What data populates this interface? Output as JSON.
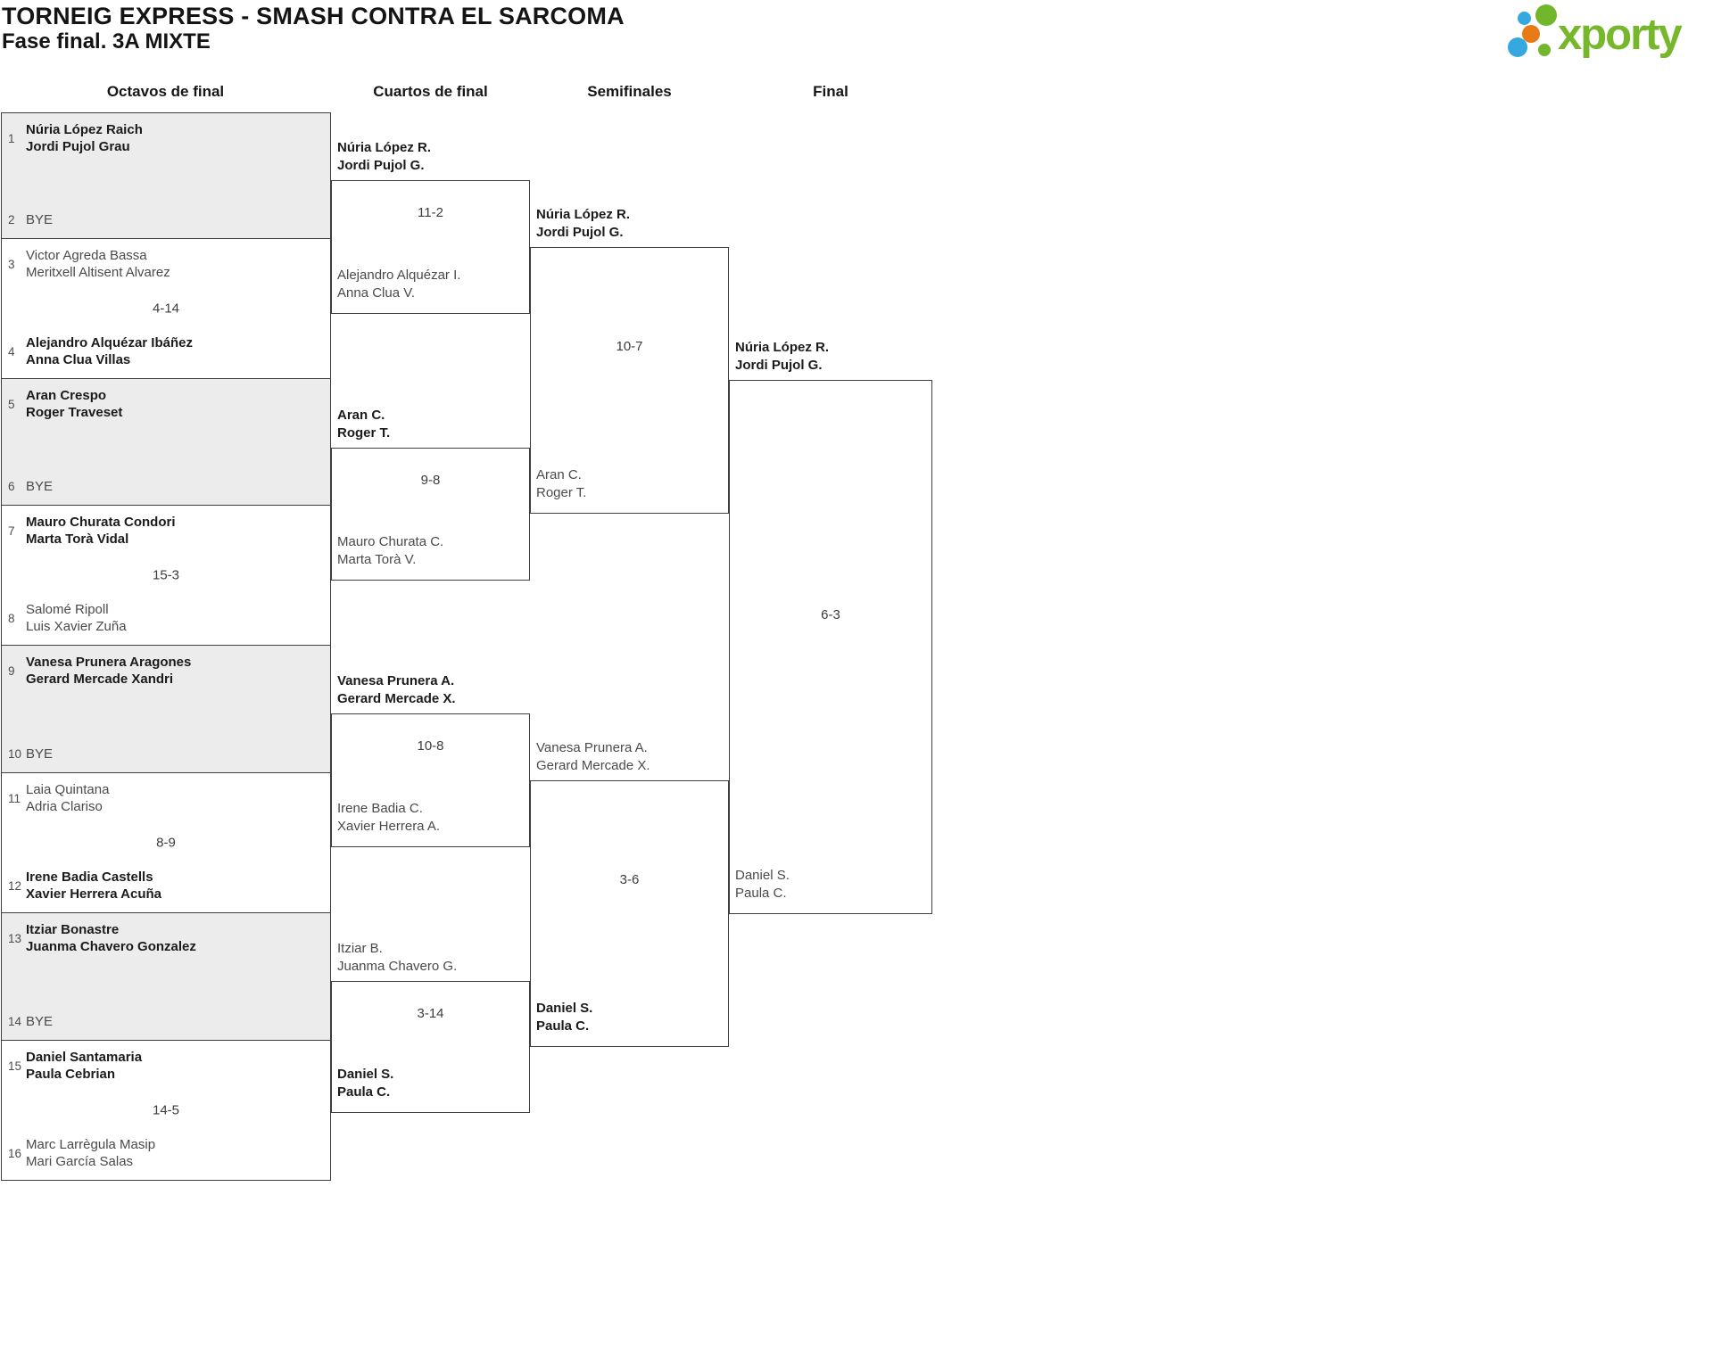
{
  "header": {
    "title": "TORNEIG EXPRESS - SMASH CONTRA EL SARCOMA",
    "subtitle": "Fase final. 3A MIXTE"
  },
  "logo": {
    "brand": "xporty"
  },
  "colors": {
    "brand_green": "#76b72b",
    "brand_blue": "#35a8e0",
    "brand_orange": "#e87b16",
    "shaded_box": "#ececec",
    "border": "#3e3e3e"
  },
  "rounds": [
    "Octavos de final",
    "Cuartos de final",
    "Semifinales",
    "Final"
  ],
  "r16": [
    {
      "score": "",
      "shaded": true,
      "top": {
        "seed": "1",
        "p1": "Núria López Raich",
        "p2": "Jordi Pujol Grau",
        "bold": true
      },
      "bottom": {
        "seed": "2",
        "p1": "BYE",
        "p2": "",
        "bold": false
      }
    },
    {
      "score": "4-14",
      "shaded": false,
      "top": {
        "seed": "3",
        "p1": "Victor Agreda Bassa",
        "p2": "Meritxell Altisent Alvarez",
        "bold": false
      },
      "bottom": {
        "seed": "4",
        "p1": "Alejandro Alquézar Ibáñez",
        "p2": "Anna Clua Villas",
        "bold": true
      }
    },
    {
      "score": "",
      "shaded": true,
      "top": {
        "seed": "5",
        "p1": "Aran Crespo",
        "p2": "Roger Traveset",
        "bold": true
      },
      "bottom": {
        "seed": "6",
        "p1": "BYE",
        "p2": "",
        "bold": false
      }
    },
    {
      "score": "15-3",
      "shaded": false,
      "top": {
        "seed": "7",
        "p1": "Mauro Churata Condori",
        "p2": "Marta Torà Vidal",
        "bold": true
      },
      "bottom": {
        "seed": "8",
        "p1": "Salomé Ripoll",
        "p2": "Luis Xavier Zuña",
        "bold": false
      }
    },
    {
      "score": "",
      "shaded": true,
      "top": {
        "seed": "9",
        "p1": "Vanesa Prunera Aragones",
        "p2": "Gerard Mercade Xandri",
        "bold": true
      },
      "bottom": {
        "seed": "10",
        "p1": "BYE",
        "p2": "",
        "bold": false
      }
    },
    {
      "score": "8-9",
      "shaded": false,
      "top": {
        "seed": "11",
        "p1": "Laia Quintana",
        "p2": "Adria Clariso",
        "bold": false
      },
      "bottom": {
        "seed": "12",
        "p1": "Irene Badia Castells",
        "p2": "Xavier Herrera Acuña",
        "bold": true
      }
    },
    {
      "score": "",
      "shaded": true,
      "top": {
        "seed": "13",
        "p1": "Itziar Bonastre",
        "p2": "Juanma Chavero Gonzalez",
        "bold": true
      },
      "bottom": {
        "seed": "14",
        "p1": "BYE",
        "p2": "",
        "bold": false
      }
    },
    {
      "score": "14-5",
      "shaded": false,
      "top": {
        "seed": "15",
        "p1": "Daniel Santamaria",
        "p2": "Paula Cebrian",
        "bold": true
      },
      "bottom": {
        "seed": "16",
        "p1": "Marc Larrègula Masip",
        "p2": "Mari García Salas",
        "bold": false
      }
    }
  ],
  "qf": [
    {
      "score": "11-2",
      "top": {
        "p1": "Núria López R.",
        "p2": "Jordi Pujol G.",
        "bold": true
      },
      "bottom": {
        "p1": "Alejandro Alquézar I.",
        "p2": "Anna Clua V.",
        "bold": false
      }
    },
    {
      "score": "9-8",
      "top": {
        "p1": "Aran C.",
        "p2": "Roger T.",
        "bold": true
      },
      "bottom": {
        "p1": "Mauro Churata C.",
        "p2": "Marta Torà V.",
        "bold": false
      }
    },
    {
      "score": "10-8",
      "top": {
        "p1": "Vanesa Prunera A.",
        "p2": "Gerard Mercade X.",
        "bold": true
      },
      "bottom": {
        "p1": "Irene Badia C.",
        "p2": "Xavier Herrera A.",
        "bold": false
      }
    },
    {
      "score": "3-14",
      "top": {
        "p1": "Itziar B.",
        "p2": "Juanma Chavero G.",
        "bold": false
      },
      "bottom": {
        "p1": "Daniel S.",
        "p2": "Paula C.",
        "bold": true
      }
    }
  ],
  "sf": [
    {
      "score": "10-7",
      "top": {
        "p1": "Núria López R.",
        "p2": "Jordi Pujol G.",
        "bold": true
      },
      "bottom": {
        "p1": "Aran C.",
        "p2": "Roger T.",
        "bold": false
      }
    },
    {
      "score": "3-6",
      "top": {
        "p1": "Vanesa Prunera A.",
        "p2": "Gerard Mercade X.",
        "bold": false
      },
      "bottom": {
        "p1": "Daniel S.",
        "p2": "Paula C.",
        "bold": true
      }
    }
  ],
  "final": {
    "score": "6-3",
    "top": {
      "p1": "Núria López R.",
      "p2": "Jordi Pujol G.",
      "bold": true
    },
    "bottom": {
      "p1": "Daniel S.",
      "p2": "Paula C.",
      "bold": false
    }
  }
}
